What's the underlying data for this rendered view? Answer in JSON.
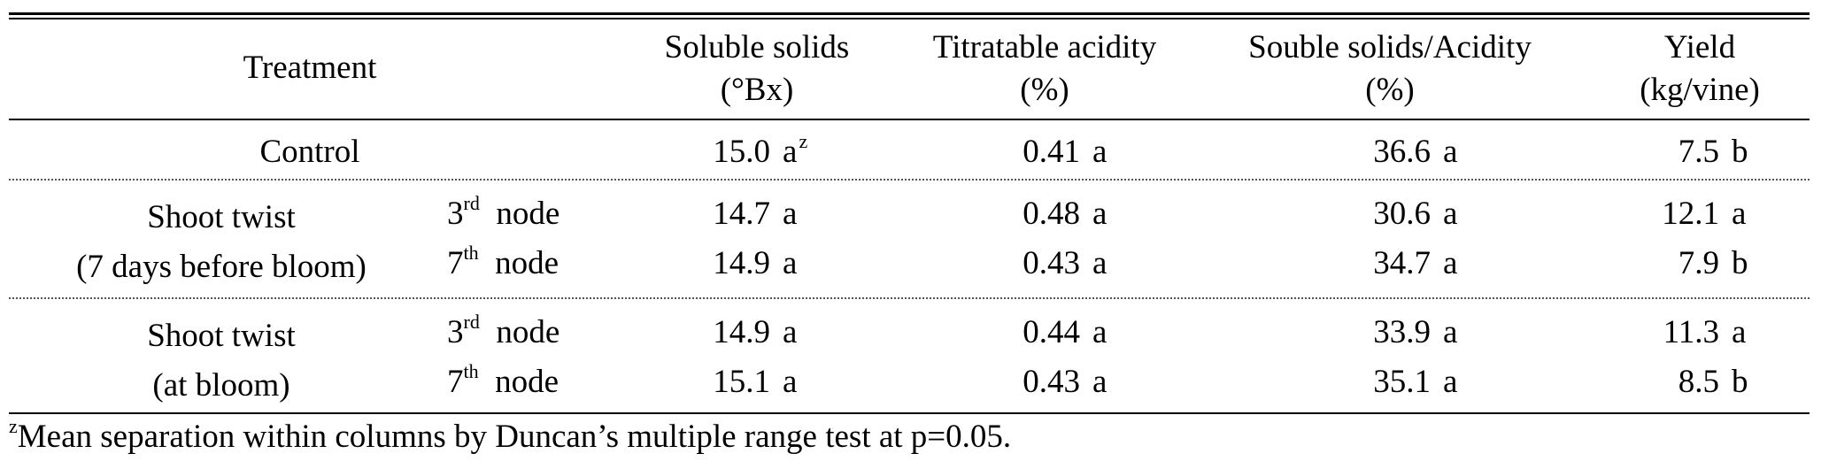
{
  "table": {
    "headers": {
      "treatment": "Treatment",
      "soluble_solids": {
        "line1": "Soluble solids",
        "line2": "(°Bx)"
      },
      "titratable_acidity": {
        "line1": "Titratable acidity",
        "line2": "(%)"
      },
      "ratio": {
        "line1": "Souble solids/Acidity",
        "line2": "(%)"
      },
      "yield": {
        "line1": "Yield",
        "line2": "(kg/vine)"
      }
    },
    "control": {
      "label": "Control",
      "soluble_solids": "15.0",
      "soluble_solids_letter": "a",
      "soluble_solids_sup": "z",
      "acidity": "0.41",
      "acidity_letter": "a",
      "ratio": "36.6",
      "ratio_letter": "a",
      "yield": "7.5",
      "yield_letter": "b"
    },
    "groups": [
      {
        "line1": "Shoot twist",
        "line2": "(7 days before bloom)",
        "rows": [
          {
            "node_num": "3",
            "node_sup": "rd",
            "node_word": "node",
            "soluble_solids": "14.7",
            "soluble_solids_letter": "a",
            "acidity": "0.48",
            "acidity_letter": "a",
            "ratio": "30.6",
            "ratio_letter": "a",
            "yield": "12.1",
            "yield_letter": "a"
          },
          {
            "node_num": "7",
            "node_sup": "th",
            "node_word": "node",
            "soluble_solids": "14.9",
            "soluble_solids_letter": "a",
            "acidity": "0.43",
            "acidity_letter": "a",
            "ratio": "34.7",
            "ratio_letter": "a",
            "yield": "7.9",
            "yield_letter": "b"
          }
        ]
      },
      {
        "line1": "Shoot twist",
        "line2": "(at bloom)",
        "rows": [
          {
            "node_num": "3",
            "node_sup": "rd",
            "node_word": "node",
            "soluble_solids": "14.9",
            "soluble_solids_letter": "a",
            "acidity": "0.44",
            "acidity_letter": "a",
            "ratio": "33.9",
            "ratio_letter": "a",
            "yield": "11.3",
            "yield_letter": "a"
          },
          {
            "node_num": "7",
            "node_sup": "th",
            "node_word": "node",
            "soluble_solids": "15.1",
            "soluble_solids_letter": "a",
            "acidity": "0.43",
            "acidity_letter": "a",
            "ratio": "35.1",
            "ratio_letter": "a",
            "yield": "8.5",
            "yield_letter": "b"
          }
        ]
      }
    ]
  },
  "footnote": {
    "sup": "z",
    "text": "Mean separation within columns by Duncan’s multiple range test at p=0.05."
  }
}
